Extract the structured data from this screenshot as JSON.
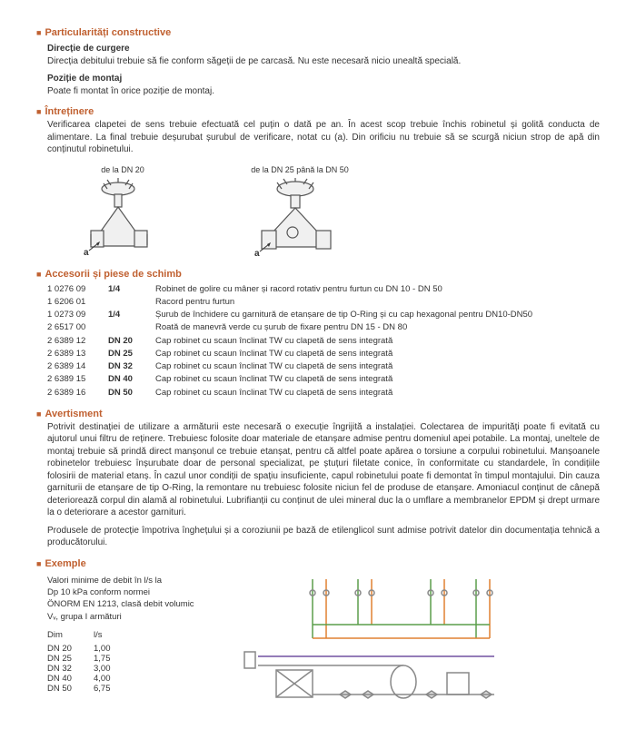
{
  "sections": {
    "particularitati": {
      "title": "Particularități constructive",
      "directie": {
        "title": "Direcție de curgere",
        "text": "Direcția debitului trebuie să fie conform săgeții de pe carcasă. Nu este necesară nicio unealtă specială."
      },
      "pozitie": {
        "title": "Poziție de montaj",
        "text": "Poate fi montat în orice poziție de montaj."
      }
    },
    "intretinere": {
      "title": "Întreținere",
      "text": "Verificarea clapetei de sens trebuie efectuată cel puțin o dată pe an. În acest scop trebuie închis robinetul și golită conducta de alimentare. La final trebuie deșurubat șurubul de verificare, notat cu (a). Din orificiu nu trebuie să se scurgă niciun strop de apă din conținutul robinetului.",
      "label1": "de la DN 20",
      "label2": "de la DN 25 până la DN 50"
    },
    "accesorii": {
      "title": "Accesorii și piese de schimb",
      "rows": [
        {
          "code": "1 0276 09",
          "size": "1/4",
          "desc": "Robinet de golire cu mâner și racord rotativ pentru furtun cu DN 10 - DN 50"
        },
        {
          "code": "1 6206 01",
          "size": "",
          "desc": "Racord pentru furtun"
        },
        {
          "code": "1 0273 09",
          "size": "1/4",
          "desc": "Șurub de închidere cu garnitură de etanșare de tip O-Ring și cu cap hexagonal pentru DN10-DN50"
        },
        {
          "code": "2 6517 00",
          "size": "",
          "desc": "Roată de manevră verde cu șurub de fixare pentru DN 15 - DN 80"
        },
        {
          "code": "2 6389 12",
          "size": "DN 20",
          "desc": "Cap robinet cu scaun înclinat TW cu clapetă de sens integrată"
        },
        {
          "code": "2 6389 13",
          "size": "DN 25",
          "desc": "Cap robinet cu scaun înclinat TW cu clapetă de sens integrată"
        },
        {
          "code": "2 6389 14",
          "size": "DN 32",
          "desc": "Cap robinet cu scaun înclinat TW cu clapetă de sens integrată"
        },
        {
          "code": "2 6389 15",
          "size": "DN 40",
          "desc": "Cap robinet cu scaun înclinat TW cu clapetă de sens integrată"
        },
        {
          "code": "2 6389 16",
          "size": "DN 50",
          "desc": "Cap robinet cu scaun înclinat TW cu clapetă de sens integrată"
        }
      ]
    },
    "avertisment": {
      "title": "Avertisment",
      "text1": "Potrivit destinației de utilizare a armăturii este necesară o execuție îngrijită a instalației. Colectarea de impurități poate fi evitată cu ajutorul unui filtru de reținere. Trebuiesc folosite doar materiale de etanșare admise pentru domeniul apei potabile. La montaj, uneltele de montaj trebuie să prindă direct manșonul ce trebuie etanșat, pentru că altfel poate apărea o torsiune a corpului robinetului. Manșoanele robinetelor trebuiesc înșurubate doar de personal specializat, pe ștuțuri filetate conice, în conformitate cu standardele, în condițiile folosirii de material etanș. În cazul unor condiții de spațiu insuficiente, capul robinetului poate fi demontat în timpul montajului. Din cauza garniturii de etanșare de tip O-Ring, la remontare nu trebuiesc folosite niciun fel de produse de etanșare. Amoniacul conținut de cânepă deteriorează corpul din alamă al robinetului. Lubrifianții cu conținut de ulei mineral duc la o umflare a membranelor EPDM și drept urmare la o deteriorare a acestor garnituri.",
      "text2": "Produsele de protecție împotriva înghețului și a coroziunii pe bază de etilenglicol sunt admise potrivit datelor din documentația tehnică a producătorului."
    },
    "exemple": {
      "title": "Exemple",
      "intro1": "Valori minime de debit în l/s la",
      "intro2": "Dp 10 kPa conform normei",
      "intro3": "ÖNORM EN 1213, clasă debit volumic",
      "intro4": "Vᵥ, grupa I armături",
      "header_dim": "Dim",
      "header_ls": "l/s",
      "rows": [
        {
          "dim": "DN 20",
          "val": "1,00"
        },
        {
          "dim": "DN 25",
          "val": "1,75"
        },
        {
          "dim": "DN 32",
          "val": "3,00"
        },
        {
          "dim": "DN 40",
          "val": "4,00"
        },
        {
          "dim": "DN 50",
          "val": "6,75"
        }
      ]
    }
  },
  "colors": {
    "heading": "#c06030",
    "diagram_green": "#5a9e4a",
    "diagram_orange": "#e08030",
    "diagram_purple": "#7050a0",
    "diagram_gray": "#888"
  }
}
